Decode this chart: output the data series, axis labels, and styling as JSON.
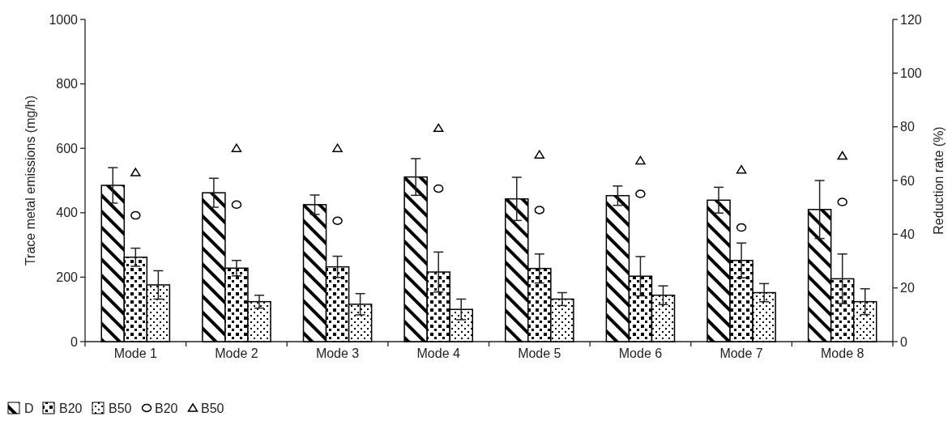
{
  "chart_data": {
    "type": "bar",
    "categories": [
      "Mode 1",
      "Mode 2",
      "Mode 3",
      "Mode 4",
      "Mode 5",
      "Mode 6",
      "Mode 7",
      "Mode 8"
    ],
    "ylabel": "Trace metal emissions (mg/h)",
    "y2label": "Reduction rate (%)",
    "ylim": [
      0,
      1000
    ],
    "yticks": [
      0,
      200,
      400,
      600,
      800,
      1000
    ],
    "y2lim": [
      0,
      120
    ],
    "y2ticks": [
      0,
      20,
      40,
      60,
      80,
      100,
      120
    ],
    "legend": "bottom",
    "grid": false,
    "series": [
      {
        "name": "D",
        "color": "#000000",
        "values": [
          485,
          462,
          425,
          511,
          443,
          453,
          439,
          410
        ],
        "errors": [
          55,
          45,
          30,
          57,
          67,
          30,
          40,
          90
        ]
      },
      {
        "name": "B20",
        "color": "#000000",
        "values": [
          262,
          228,
          232,
          216,
          227,
          203,
          252,
          195
        ],
        "errors": [
          28,
          24,
          33,
          62,
          45,
          61,
          54,
          77
        ]
      },
      {
        "name": "B50",
        "color": "#000000",
        "values": [
          176,
          124,
          116,
          100,
          132,
          144,
          152,
          124
        ],
        "errors": [
          44,
          20,
          33,
          32,
          20,
          29,
          28,
          40
        ]
      },
      {
        "name": "B20",
        "type": "scatter",
        "axis": "y2",
        "marker": "circle",
        "color": "#000000",
        "x": [
          "Mode 1",
          "Mode 2",
          "Mode 3",
          "Mode 4",
          "Mode 5",
          "Mode 6",
          "Mode 7",
          "Mode 8"
        ],
        "values": [
          47,
          51,
          45,
          57,
          49,
          55,
          42.5,
          52
        ]
      },
      {
        "name": "B50",
        "type": "scatter",
        "axis": "y2",
        "marker": "triangle",
        "color": "#000000",
        "x": [
          "Mode 1",
          "Mode 2",
          "Mode 3",
          "Mode 4",
          "Mode 5",
          "Mode 6",
          "Mode 7",
          "Mode 8"
        ],
        "values": [
          63,
          72,
          72,
          79.5,
          69.6,
          67.4,
          64,
          69.2
        ]
      }
    ]
  }
}
